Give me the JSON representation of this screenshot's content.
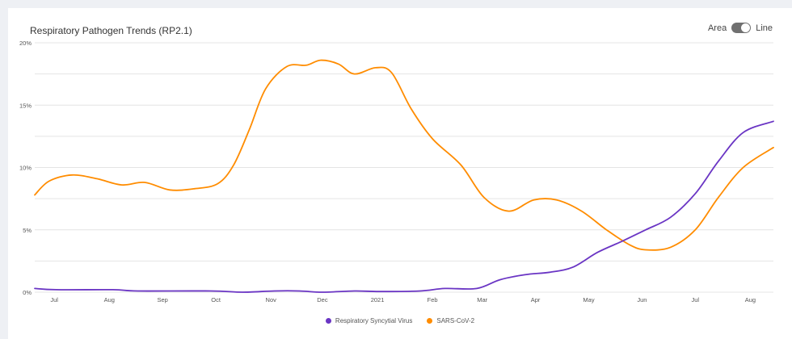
{
  "header": {
    "title": "Respiratory Pathogen Trends (RP2.1)",
    "toggle_left": "Area",
    "toggle_right": "Line",
    "toggle_state": "Line"
  },
  "chart_data": {
    "type": "line",
    "title": "Respiratory Pathogen Trends (RP2.1)",
    "xlabel": "",
    "ylabel": "",
    "ylim": [
      0,
      20
    ],
    "y_ticks": [
      0,
      5,
      10,
      15,
      20
    ],
    "y_tick_labels": [
      "0%",
      "5%",
      "10%",
      "15%",
      "20%"
    ],
    "y_gridlines": [
      0,
      2.5,
      5,
      7.5,
      10,
      12.5,
      15,
      17.5,
      20
    ],
    "grid": true,
    "xlim": [
      0,
      416
    ],
    "x_ticks": [
      11,
      42,
      72,
      102,
      133,
      162,
      193,
      224,
      252,
      282,
      312,
      342,
      372,
      403
    ],
    "x_tick_labels": [
      "Jul",
      "Aug",
      "Sep",
      "Oct",
      "Nov",
      "Dec",
      "2021",
      "Feb",
      "Mar",
      "Apr",
      "May",
      "Jun",
      "Jul",
      "Aug"
    ],
    "legend_position": "bottom",
    "series": [
      {
        "name": "Respiratory Syncytial Virus",
        "color": "#6a35c4",
        "x": [
          0,
          12,
          44,
          58,
          99,
          117,
          135,
          149,
          162,
          180,
          194,
          217,
          231,
          249,
          262,
          276,
          290,
          303,
          317,
          331,
          344,
          358,
          372,
          385,
          399,
          416
        ],
        "values": [
          0.3,
          0.2,
          0.2,
          0.1,
          0.1,
          0.0,
          0.1,
          0.1,
          0.0,
          0.1,
          0.05,
          0.1,
          0.3,
          0.3,
          1.0,
          1.4,
          1.6,
          2.0,
          3.2,
          4.1,
          5.0,
          6.0,
          7.9,
          10.5,
          12.8,
          13.7
        ]
      },
      {
        "name": "SARS-CoV-2",
        "color": "#ff8c00",
        "x": [
          0,
          8,
          21,
          35,
          49,
          62,
          76,
          90,
          103,
          112,
          121,
          130,
          142,
          153,
          161,
          171,
          180,
          192,
          201,
          212,
          224,
          240,
          253,
          267,
          281,
          294,
          308,
          322,
          335,
          344,
          358,
          372,
          385,
          399,
          416
        ],
        "values": [
          7.8,
          8.9,
          9.4,
          9.1,
          8.6,
          8.8,
          8.2,
          8.3,
          8.7,
          10.2,
          13.1,
          16.3,
          18.1,
          18.2,
          18.6,
          18.3,
          17.5,
          18.0,
          17.6,
          14.7,
          12.3,
          10.2,
          7.6,
          6.5,
          7.4,
          7.4,
          6.5,
          5.0,
          3.8,
          3.4,
          3.6,
          5.0,
          7.6,
          10.0,
          11.6
        ]
      }
    ]
  },
  "legend": [
    {
      "label": "Respiratory Syncytial Virus",
      "color": "#6a35c4"
    },
    {
      "label": "SARS-CoV-2",
      "color": "#ff8c00"
    }
  ]
}
